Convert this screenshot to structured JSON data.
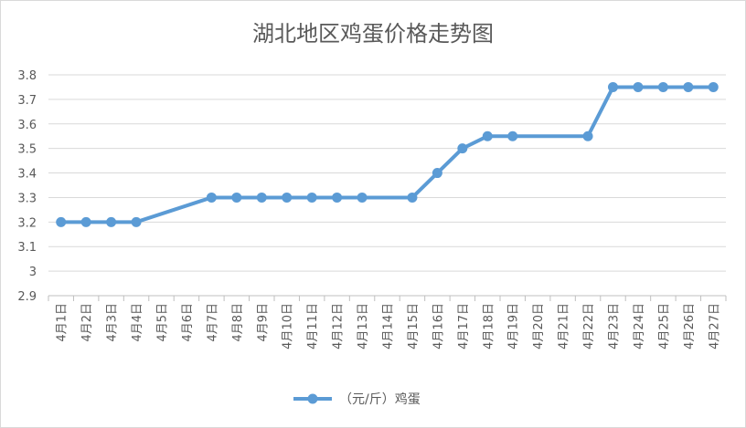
{
  "chart_data": {
    "type": "line",
    "title": "湖北地区鸡蛋价格走势图",
    "xlabel": "",
    "ylabel": "",
    "ylim": [
      2.9,
      3.8
    ],
    "yticks": [
      "3.8",
      "3.7",
      "3.6",
      "3.5",
      "3.4",
      "3.3",
      "3.2",
      "3.1",
      "3",
      "2.9"
    ],
    "grid": true,
    "legend_position": "bottom",
    "categories": [
      "4月1日",
      "4月2日",
      "4月3日",
      "4月4日",
      "4月5日",
      "4月6日",
      "4月7日",
      "4月8日",
      "4月9日",
      "4月10日",
      "4月11日",
      "4月12日",
      "4月13日",
      "4月14日",
      "4月15日",
      "4月16日",
      "4月17日",
      "4月18日",
      "4月19日",
      "4月20日",
      "4月21日",
      "4月22日",
      "4月23日",
      "4月24日",
      "4月25日",
      "4月26日",
      "4月27日"
    ],
    "series": [
      {
        "name": "（元/斤）鸡蛋",
        "color": "#5b9bd5",
        "values": [
          3.2,
          3.2,
          3.2,
          3.2,
          null,
          null,
          3.3,
          3.3,
          3.3,
          3.3,
          3.3,
          3.3,
          3.3,
          null,
          3.3,
          3.4,
          3.5,
          3.55,
          3.55,
          null,
          null,
          3.55,
          3.75,
          3.75,
          3.75,
          3.75,
          3.75
        ]
      }
    ]
  }
}
